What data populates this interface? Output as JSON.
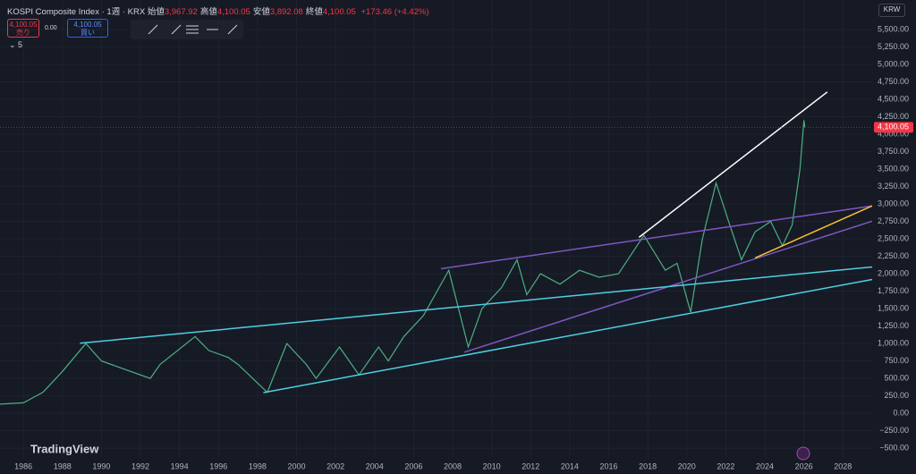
{
  "header": {
    "title": "KOSPI Composite Index · 1週 · KRX",
    "ohlc": [
      {
        "label": "始値",
        "value": "3,967.92"
      },
      {
        "label": "高値",
        "value": "4,100.05"
      },
      {
        "label": "安値",
        "value": "3,892.08"
      },
      {
        "label": "終値",
        "value": "4,100.05"
      }
    ],
    "change": "+173.46 (+4.42%)"
  },
  "trade": {
    "sell_price": "4,100.05",
    "sell": "売り",
    "spread": "0.00",
    "buy_price": "4,100.05",
    "buy": "買い"
  },
  "indicator": "5",
  "currency": "KRW",
  "brand": "TradingView",
  "chart_data": {
    "type": "line",
    "color": "#4caf82",
    "x": [
      1984.8,
      1986,
      1987,
      1988,
      1989.2,
      1990,
      1991,
      1992.5,
      1993,
      1994.8,
      1995.5,
      1996.5,
      1997,
      1998.5,
      1999.5,
      2000.5,
      2001,
      2002.2,
      2003.2,
      2004.2,
      2004.7,
      2005.5,
      2006.5,
      2007.8,
      2008.8,
      2009.5,
      2010.5,
      2011.3,
      2011.8,
      2012.5,
      2013.5,
      2014.5,
      2015.5,
      2016.5,
      2017.8,
      2018.9,
      2019.5,
      2020.2,
      2020.8,
      2021.5,
      2022.2,
      2022.8,
      2023.5,
      2024.3,
      2024.9,
      2025.4,
      2025.8,
      2026.0,
      2026.05
    ],
    "values": [
      130,
      150,
      300,
      600,
      1000,
      750,
      650,
      500,
      700,
      1100,
      900,
      800,
      700,
      300,
      1000,
      700,
      500,
      950,
      550,
      950,
      750,
      1100,
      1400,
      2050,
      950,
      1500,
      1800,
      2200,
      1700,
      2000,
      1850,
      2050,
      1950,
      2000,
      2550,
      2050,
      2150,
      1450,
      2500,
      3300,
      2700,
      2200,
      2600,
      2750,
      2400,
      2700,
      3500,
      4200,
      4100
    ],
    "xlim": [
      1984.8,
      2029.5
    ],
    "ylim": [
      -640,
      5925
    ],
    "xticks": [
      1986,
      1988,
      1990,
      1992,
      1994,
      1996,
      1998,
      2000,
      2002,
      2004,
      2006,
      2008,
      2010,
      2012,
      2014,
      2016,
      2018,
      2020,
      2022,
      2024,
      2026,
      2028
    ],
    "yticks": [
      {
        "value": -500,
        "label": "−500.00"
      },
      {
        "value": -250,
        "label": "−250.00"
      },
      {
        "value": 0,
        "label": "0.00"
      },
      {
        "value": 250,
        "label": "250.00"
      },
      {
        "value": 500,
        "label": "500.00"
      },
      {
        "value": 750,
        "label": "750.00"
      },
      {
        "value": 1000,
        "label": "1,000.00"
      },
      {
        "value": 1250,
        "label": "1,250.00"
      },
      {
        "value": 1500,
        "label": "1,500.00"
      },
      {
        "value": 1750,
        "label": "1,750.00"
      },
      {
        "value": 2000,
        "label": "2,000.00"
      },
      {
        "value": 2250,
        "label": "2,250.00"
      },
      {
        "value": 2500,
        "label": "2,500.00"
      },
      {
        "value": 2750,
        "label": "2,750.00"
      },
      {
        "value": 3000,
        "label": "3,000.00"
      },
      {
        "value": 3250,
        "label": "3,250.00"
      },
      {
        "value": 3500,
        "label": "3,500.00"
      },
      {
        "value": 3750,
        "label": "3,750.00"
      },
      {
        "value": 4000,
        "label": "4,000.00"
      },
      {
        "value": 4250,
        "label": "4,250.00"
      },
      {
        "value": 4500,
        "label": "4,500.00"
      },
      {
        "value": 4750,
        "label": "4,750.00"
      },
      {
        "value": 5000,
        "label": "5,000.00"
      },
      {
        "value": 5250,
        "label": "5,250.00"
      },
      {
        "value": 5500,
        "label": "5,500.00"
      }
    ],
    "last_price": {
      "value": 4100.05,
      "label": "4,100.05"
    },
    "last_price_color": "#f23645",
    "trendlines": [
      {
        "color": "#ffffff",
        "x": [
          2017.55,
          2027.2
        ],
        "y": [
          2522,
          4607
        ]
      },
      {
        "color": "#7e57c2",
        "x": [
          2007.4,
          2029.5
        ],
        "y": [
          2072,
          2973
        ]
      },
      {
        "color": "#7e57c2",
        "x": [
          2008.6,
          2029.5
        ],
        "y": [
          875,
          2754
        ]
      },
      {
        "color": "#4dd0e1",
        "x": [
          1988.9,
          2029.5
        ],
        "y": [
          1004,
          2098
        ]
      },
      {
        "color": "#4dd0e1",
        "x": [
          1998.3,
          2029.5
        ],
        "y": [
          296,
          1918
        ]
      },
      {
        "color": "#fbc02d",
        "x": [
          2023.5,
          2029.5
        ],
        "y": [
          2227,
          2973
        ]
      }
    ]
  }
}
